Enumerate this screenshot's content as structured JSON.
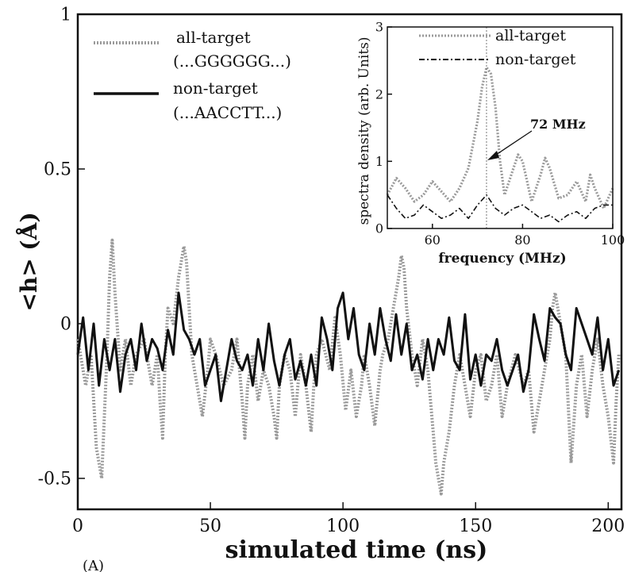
{
  "panel_label": "(A)",
  "chart_data": [
    {
      "type": "line",
      "xlabel": "simulated time (ns)",
      "ylabel": "<h> (Å)",
      "xlim": [
        0,
        205
      ],
      "ylim": [
        -0.6,
        1.0
      ],
      "x_ticks": [
        "0",
        "50",
        "100",
        "150",
        "200"
      ],
      "y_ticks": [
        "-0.5",
        "0",
        "0.5",
        "1"
      ],
      "legend_placement": "top-left",
      "series": [
        {
          "name": "all-target",
          "name_line2": "(...GGGGGG...)",
          "color": "#9a9a9a",
          "style": "dotted-gray",
          "x": [
            0,
            3,
            5,
            7,
            9,
            11,
            12,
            13,
            14,
            16,
            18,
            20,
            22,
            25,
            28,
            30,
            31,
            32,
            33,
            34,
            36,
            38,
            40,
            41,
            42,
            43,
            45,
            47,
            49,
            50,
            52,
            55,
            58,
            60,
            62,
            63,
            64,
            66,
            68,
            70,
            72,
            74,
            75,
            76,
            78,
            80,
            82,
            84,
            86,
            88,
            89,
            90,
            92,
            95,
            97,
            99,
            101,
            103,
            105,
            107,
            108,
            110,
            112,
            114,
            115,
            117,
            119,
            121,
            122,
            123,
            124,
            126,
            128,
            130,
            132,
            134,
            135,
            136,
            137,
            138,
            140,
            142,
            144,
            146,
            148,
            150,
            152,
            154,
            156,
            158,
            160,
            162,
            165,
            168,
            170,
            172,
            174,
            176,
            178,
            179,
            180,
            182,
            184,
            186,
            188,
            190,
            192,
            194,
            196,
            198,
            200,
            202,
            203,
            204
          ],
          "y": [
            -0.05,
            -0.2,
            -0.1,
            -0.4,
            -0.5,
            -0.1,
            0.15,
            0.27,
            0.1,
            -0.15,
            -0.05,
            -0.2,
            -0.1,
            -0.05,
            -0.2,
            -0.1,
            -0.25,
            -0.37,
            -0.1,
            0.05,
            0.0,
            0.15,
            0.25,
            0.2,
            0.05,
            -0.1,
            -0.2,
            -0.3,
            -0.15,
            -0.05,
            -0.1,
            -0.2,
            -0.15,
            -0.05,
            -0.25,
            -0.37,
            -0.2,
            -0.1,
            -0.25,
            -0.15,
            -0.2,
            -0.3,
            -0.37,
            -0.2,
            -0.1,
            -0.15,
            -0.3,
            -0.1,
            -0.2,
            -0.35,
            -0.2,
            -0.1,
            -0.05,
            -0.15,
            0.02,
            -0.1,
            -0.28,
            -0.15,
            -0.3,
            -0.2,
            -0.1,
            -0.2,
            -0.33,
            -0.15,
            -0.1,
            -0.05,
            0.05,
            0.15,
            0.22,
            0.18,
            0.05,
            -0.1,
            -0.2,
            -0.05,
            -0.15,
            -0.35,
            -0.45,
            -0.5,
            -0.55,
            -0.45,
            -0.35,
            -0.2,
            -0.1,
            -0.2,
            -0.3,
            -0.15,
            -0.1,
            -0.25,
            -0.2,
            -0.1,
            -0.3,
            -0.2,
            -0.1,
            -0.2,
            -0.15,
            -0.35,
            -0.25,
            -0.15,
            -0.05,
            0.05,
            0.1,
            0.0,
            -0.1,
            -0.45,
            -0.2,
            -0.1,
            -0.3,
            -0.15,
            -0.05,
            -0.2,
            -0.3,
            -0.45,
            -0.25,
            -0.1
          ]
        },
        {
          "name": "non-target",
          "name_line2": "(...AACCTT...)",
          "color": "#111111",
          "style": "solid-black",
          "x": [
            0,
            2,
            4,
            6,
            8,
            10,
            12,
            14,
            16,
            18,
            20,
            22,
            24,
            26,
            28,
            30,
            32,
            34,
            36,
            38,
            40,
            42,
            44,
            46,
            48,
            50,
            52,
            54,
            56,
            58,
            60,
            62,
            64,
            66,
            68,
            70,
            72,
            74,
            76,
            78,
            80,
            82,
            84,
            86,
            88,
            90,
            92,
            94,
            96,
            98,
            100,
            102,
            104,
            106,
            108,
            110,
            112,
            114,
            116,
            118,
            120,
            122,
            124,
            126,
            128,
            130,
            132,
            134,
            136,
            138,
            140,
            142,
            144,
            146,
            148,
            150,
            152,
            154,
            156,
            158,
            160,
            162,
            164,
            166,
            168,
            170,
            172,
            174,
            176,
            178,
            180,
            182,
            184,
            186,
            188,
            190,
            192,
            194,
            196,
            198,
            200,
            202,
            204
          ],
          "y": [
            -0.1,
            0.02,
            -0.15,
            0.0,
            -0.2,
            -0.05,
            -0.15,
            -0.05,
            -0.22,
            -0.1,
            -0.05,
            -0.15,
            0.0,
            -0.12,
            -0.05,
            -0.08,
            -0.15,
            -0.02,
            -0.1,
            0.1,
            -0.02,
            -0.05,
            -0.1,
            -0.05,
            -0.2,
            -0.15,
            -0.1,
            -0.25,
            -0.15,
            -0.05,
            -0.12,
            -0.15,
            -0.1,
            -0.2,
            -0.05,
            -0.15,
            0.0,
            -0.12,
            -0.2,
            -0.1,
            -0.05,
            -0.18,
            -0.12,
            -0.2,
            -0.1,
            -0.2,
            0.02,
            -0.05,
            -0.15,
            0.05,
            0.1,
            -0.05,
            0.05,
            -0.1,
            -0.15,
            0.0,
            -0.1,
            0.05,
            -0.05,
            -0.12,
            0.03,
            -0.1,
            0.0,
            -0.15,
            -0.1,
            -0.18,
            -0.05,
            -0.15,
            -0.05,
            -0.1,
            0.02,
            -0.12,
            -0.15,
            0.03,
            -0.18,
            -0.1,
            -0.2,
            -0.1,
            -0.12,
            -0.05,
            -0.15,
            -0.2,
            -0.15,
            -0.1,
            -0.22,
            -0.15,
            0.03,
            -0.05,
            -0.12,
            0.05,
            0.02,
            0.0,
            -0.1,
            -0.15,
            0.05,
            0.0,
            -0.05,
            -0.1,
            0.02,
            -0.15,
            -0.05,
            -0.2,
            -0.15
          ]
        }
      ]
    },
    {
      "type": "line",
      "placement": "inset top-right",
      "xlabel": "frequency (MHz)",
      "ylabel": "spectra density (arb. Units)",
      "xlim": [
        50,
        100
      ],
      "ylim": [
        0,
        3
      ],
      "x_ticks": [
        "60",
        "80",
        "100"
      ],
      "y_ticks": [
        "0",
        "1",
        "2",
        "3"
      ],
      "annotation": {
        "text": "72 MHz",
        "x": 72
      },
      "series": [
        {
          "name": "all-target",
          "color": "#9a9a9a",
          "style": "dotted-gray",
          "x": [
            50,
            52,
            54,
            56,
            58,
            60,
            62,
            64,
            66,
            68,
            70,
            71,
            72,
            73,
            74,
            75,
            76,
            78,
            79,
            80,
            82,
            84,
            85,
            86,
            88,
            90,
            92,
            94,
            95,
            96,
            98,
            100
          ],
          "y": [
            0.5,
            0.75,
            0.6,
            0.4,
            0.5,
            0.7,
            0.55,
            0.4,
            0.6,
            0.9,
            1.6,
            2.1,
            2.4,
            2.3,
            1.8,
            1.0,
            0.5,
            0.9,
            1.1,
            1.0,
            0.4,
            0.8,
            1.05,
            0.9,
            0.45,
            0.5,
            0.7,
            0.4,
            0.8,
            0.6,
            0.3,
            0.6
          ]
        },
        {
          "name": "non-target",
          "color": "#111111",
          "style": "dash-dot-black",
          "x": [
            50,
            52,
            54,
            56,
            58,
            60,
            62,
            64,
            66,
            68,
            70,
            72,
            74,
            76,
            78,
            80,
            82,
            84,
            86,
            88,
            90,
            92,
            94,
            96,
            98,
            100
          ],
          "y": [
            0.5,
            0.3,
            0.15,
            0.2,
            0.35,
            0.25,
            0.15,
            0.2,
            0.3,
            0.15,
            0.35,
            0.5,
            0.3,
            0.2,
            0.3,
            0.35,
            0.25,
            0.15,
            0.2,
            0.1,
            0.2,
            0.25,
            0.15,
            0.3,
            0.35,
            0.35
          ]
        }
      ]
    }
  ]
}
